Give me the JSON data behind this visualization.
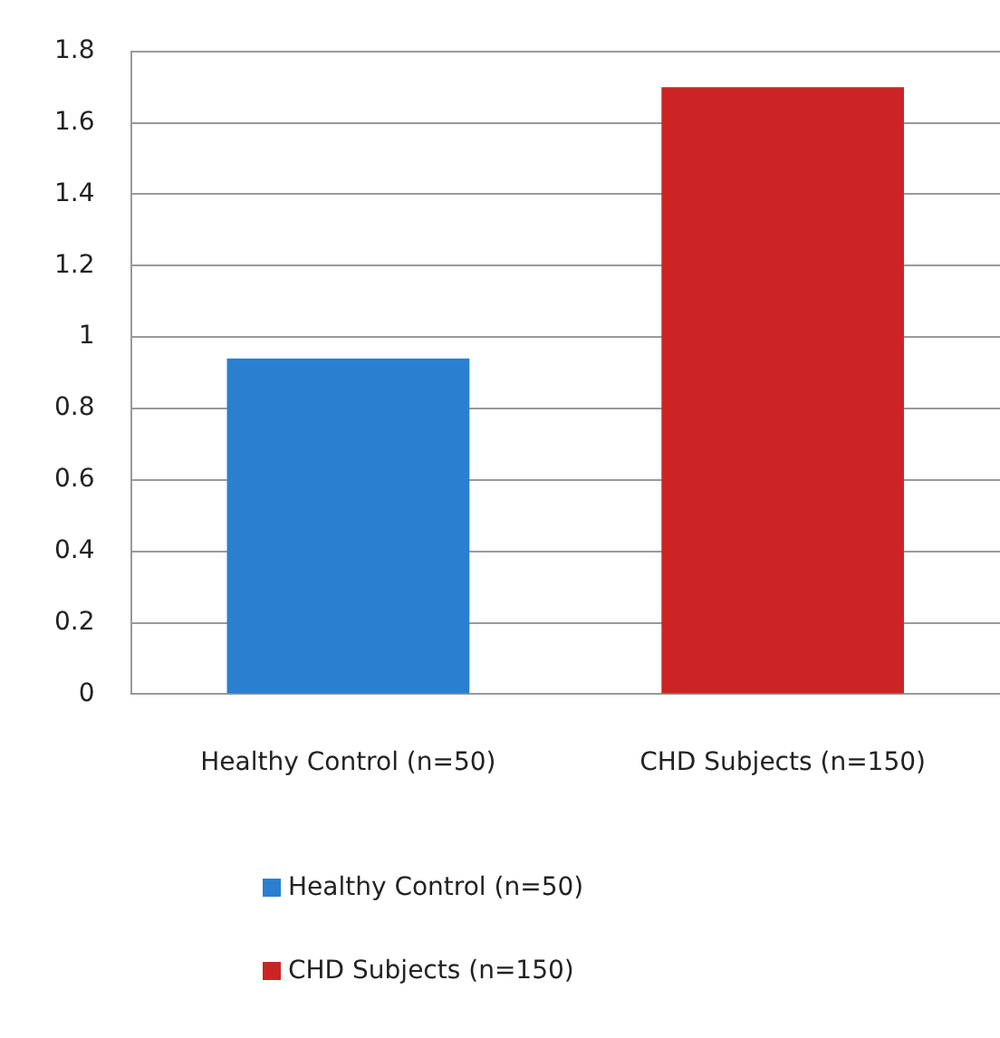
{
  "chart_data": {
    "type": "bar",
    "categories": [
      "Healthy Control (n=50)",
      "CHD Subjects (n=150)"
    ],
    "series": [
      {
        "name": "Healthy Control (n=50)",
        "color": "#2a7fd0",
        "values": [
          0.94,
          null
        ]
      },
      {
        "name": "CHD Subjects (n=150)",
        "color": "#cc2424",
        "values": [
          null,
          1.7
        ]
      }
    ],
    "ylim": [
      0,
      1.8
    ],
    "yticks": [
      0,
      0.2,
      0.4,
      0.6,
      0.8,
      1,
      1.2,
      1.4,
      1.6,
      1.8
    ],
    "grid": "y",
    "legend": "bottom"
  }
}
